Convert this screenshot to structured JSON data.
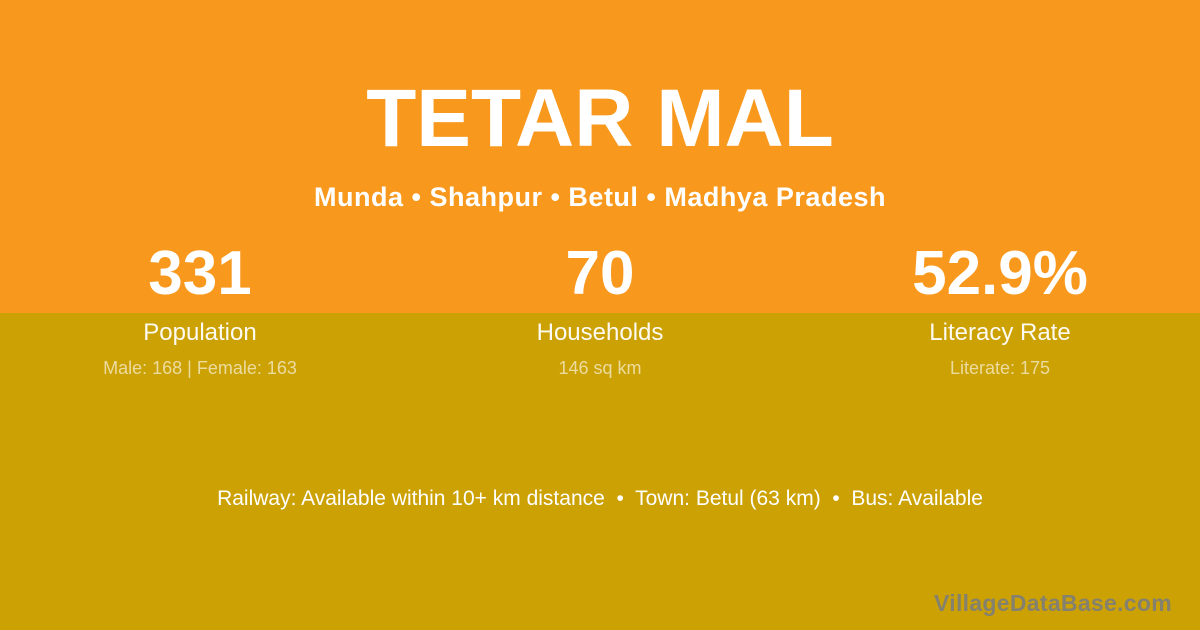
{
  "village": {
    "title": "TETAR MAL",
    "breadcrumb": "Munda • Shahpur • Betul • Madhya Pradesh",
    "breadcrumb_parts": [
      "Munda",
      "Shahpur",
      "Betul",
      "Madhya Pradesh"
    ]
  },
  "stats": [
    {
      "value": "331",
      "label": "Population",
      "detail": "Male: 168 | Female: 163"
    },
    {
      "value": "70",
      "label": "Households",
      "detail": "146 sq km"
    },
    {
      "value": "52.9%",
      "label": "Literacy Rate",
      "detail": "Literate: 175"
    }
  ],
  "amenities": {
    "line": "Railway: Available within 10+ km distance  •  Town: Betul (63 km)  •  Bus: Available",
    "railway": "Available within 10+ km distance",
    "town": "Betul (63 km)",
    "bus": "Available"
  },
  "watermark": "VillageDataBase.com",
  "colors": {
    "top_band": "#F8981D",
    "bottom_band": "#CCA103",
    "text_primary": "#FFFFFF",
    "text_detail": "rgba(255,255,255,0.62)",
    "watermark": "#85816F"
  }
}
